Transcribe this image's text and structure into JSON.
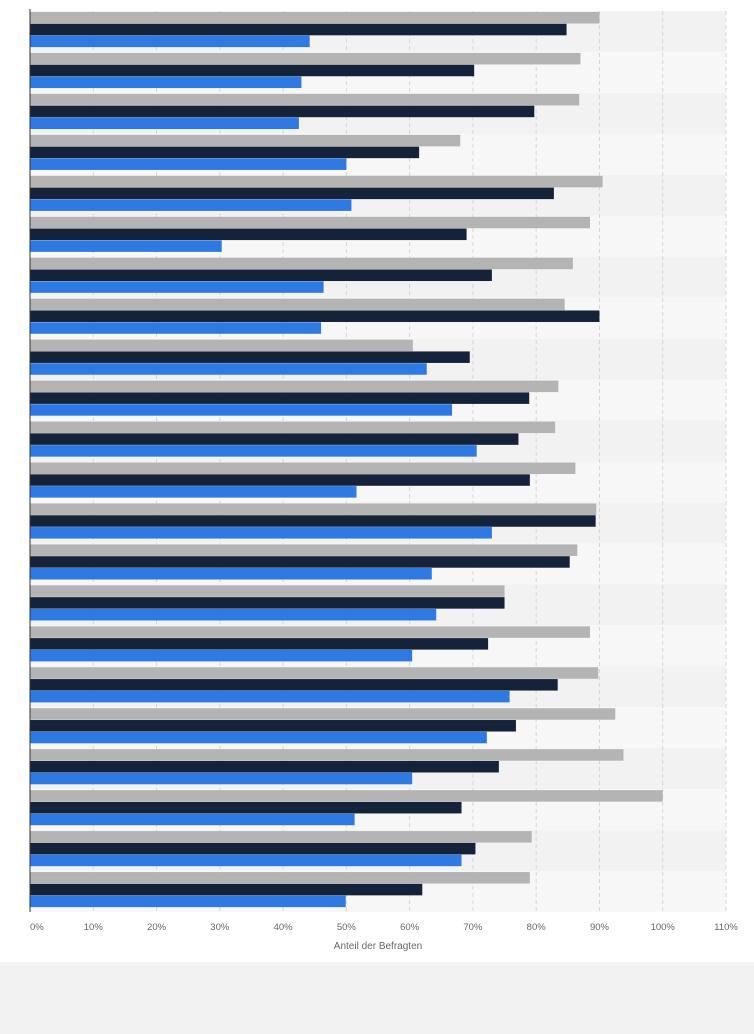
{
  "chart_data": {
    "type": "bar",
    "orientation": "horizontal",
    "xlabel": "Anteil der Befragten",
    "ylabel": "",
    "xlim": [
      0,
      110
    ],
    "xticks": [
      0,
      10,
      20,
      30,
      40,
      50,
      60,
      70,
      80,
      90,
      100,
      110
    ],
    "tick_format": "{v}%",
    "grid": true,
    "legend": "none",
    "category_count": 22,
    "series": [
      {
        "color": "#b4b4b4",
        "values": [
          90,
          87,
          86.8,
          68,
          90.5,
          88.5,
          85.8,
          84.5,
          60.5,
          83.5,
          83,
          86.2,
          89.5,
          86.5,
          75,
          88.5,
          89.8,
          92.5,
          93.8,
          100,
          79.3,
          79
        ]
      },
      {
        "color": "#14233a",
        "values": [
          84.8,
          70.2,
          79.7,
          61.5,
          82.8,
          69,
          73,
          90,
          69.5,
          78.9,
          77.2,
          79,
          89.4,
          85.3,
          75,
          72.4,
          83.4,
          76.8,
          74.1,
          68.2,
          70.4,
          62
        ]
      },
      {
        "color": "#2f79e3",
        "values": [
          44.2,
          42.9,
          42.5,
          50,
          50.8,
          30.3,
          46.4,
          46,
          62.7,
          66.7,
          70.6,
          51.6,
          73,
          63.5,
          64.2,
          60.4,
          75.8,
          72.2,
          60.4,
          51.3,
          68.2,
          49.9
        ]
      }
    ]
  }
}
